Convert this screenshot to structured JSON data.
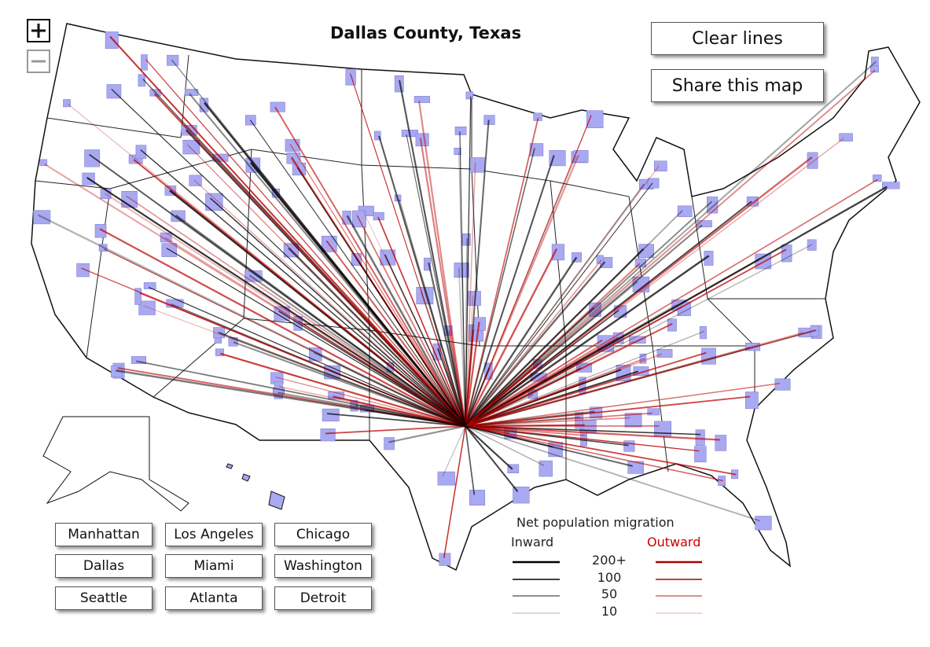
{
  "header": {
    "title": "Dallas County, Texas"
  },
  "actions": [
    "Clear lines",
    "Share this map"
  ],
  "city_buttons": [
    [
      "Manhattan",
      "Los Angeles",
      "Chicago"
    ],
    [
      "Dallas",
      "Miami",
      "Washington"
    ],
    [
      "Seattle",
      "Atlanta",
      "Detroit"
    ]
  ],
  "legend": {
    "title": "Net population migration",
    "inward": "Inward",
    "outward": "Outward",
    "levels": [
      "200+",
      "100",
      "50",
      "10"
    ]
  }
}
